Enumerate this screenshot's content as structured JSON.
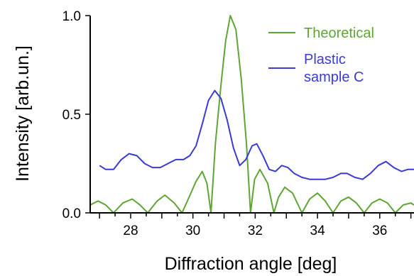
{
  "chart_data": {
    "type": "line",
    "title": "",
    "xlabel": "Diffraction angle [deg]",
    "ylabel": "Intensity  [arb.un.]",
    "xlim": [
      26.7,
      37.1
    ],
    "ylim": [
      0.0,
      1.0
    ],
    "x_ticks": [
      {
        "value": 28,
        "label": "28"
      },
      {
        "value": 30,
        "label": "30"
      },
      {
        "value": 32,
        "label": "32"
      },
      {
        "value": 34,
        "label": "34"
      },
      {
        "value": 36,
        "label": "36"
      }
    ],
    "x_minor_step": 0.5,
    "y_ticks": [
      {
        "value": 0.0,
        "label": "0.0"
      },
      {
        "value": 0.5,
        "label": "0.5"
      },
      {
        "value": 1.0,
        "label": "1.0"
      }
    ],
    "grid": false,
    "legend_position": "top-right",
    "series": [
      {
        "name": "Theoretical",
        "color": "#5ea533",
        "points": [
          [
            26.7,
            0.04
          ],
          [
            26.95,
            0.06
          ],
          [
            27.2,
            0.04
          ],
          [
            27.45,
            0.0
          ],
          [
            27.75,
            0.05
          ],
          [
            28.05,
            0.07
          ],
          [
            28.3,
            0.04
          ],
          [
            28.55,
            0.0
          ],
          [
            28.85,
            0.06
          ],
          [
            29.1,
            0.09
          ],
          [
            29.4,
            0.05
          ],
          [
            29.65,
            0.0
          ],
          [
            29.85,
            0.07
          ],
          [
            30.1,
            0.16
          ],
          [
            30.3,
            0.21
          ],
          [
            30.45,
            0.15
          ],
          [
            30.58,
            0.0
          ],
          [
            30.72,
            0.35
          ],
          [
            30.9,
            0.65
          ],
          [
            31.05,
            0.87
          ],
          [
            31.2,
            1.0
          ],
          [
            31.38,
            0.93
          ],
          [
            31.55,
            0.68
          ],
          [
            31.72,
            0.35
          ],
          [
            31.85,
            0.0
          ],
          [
            31.98,
            0.17
          ],
          [
            32.15,
            0.22
          ],
          [
            32.4,
            0.15
          ],
          [
            32.6,
            0.0
          ],
          [
            32.75,
            0.08
          ],
          [
            32.95,
            0.13
          ],
          [
            33.2,
            0.1
          ],
          [
            33.5,
            0.0
          ],
          [
            33.75,
            0.07
          ],
          [
            34.0,
            0.1
          ],
          [
            34.25,
            0.06
          ],
          [
            34.5,
            0.0
          ],
          [
            34.75,
            0.06
          ],
          [
            35.0,
            0.08
          ],
          [
            35.25,
            0.05
          ],
          [
            35.5,
            0.0
          ],
          [
            35.75,
            0.05
          ],
          [
            36.0,
            0.07
          ],
          [
            36.25,
            0.05
          ],
          [
            36.5,
            0.0
          ],
          [
            36.75,
            0.04
          ],
          [
            37.0,
            0.05
          ],
          [
            37.1,
            0.04
          ]
        ]
      },
      {
        "name": "Plastic\nsample C",
        "color": "#3a3ad4",
        "points": [
          [
            27.0,
            0.24
          ],
          [
            27.2,
            0.22
          ],
          [
            27.45,
            0.22
          ],
          [
            27.7,
            0.27
          ],
          [
            27.95,
            0.3
          ],
          [
            28.2,
            0.29
          ],
          [
            28.45,
            0.25
          ],
          [
            28.7,
            0.23
          ],
          [
            28.95,
            0.23
          ],
          [
            29.2,
            0.25
          ],
          [
            29.45,
            0.27
          ],
          [
            29.7,
            0.27
          ],
          [
            29.9,
            0.29
          ],
          [
            30.1,
            0.34
          ],
          [
            30.3,
            0.45
          ],
          [
            30.5,
            0.57
          ],
          [
            30.7,
            0.62
          ],
          [
            30.9,
            0.58
          ],
          [
            31.1,
            0.47
          ],
          [
            31.3,
            0.33
          ],
          [
            31.5,
            0.24
          ],
          [
            31.7,
            0.27
          ],
          [
            31.9,
            0.34
          ],
          [
            32.05,
            0.35
          ],
          [
            32.25,
            0.29
          ],
          [
            32.45,
            0.22
          ],
          [
            32.65,
            0.21
          ],
          [
            32.85,
            0.24
          ],
          [
            33.05,
            0.23
          ],
          [
            33.25,
            0.2
          ],
          [
            33.5,
            0.18
          ],
          [
            33.75,
            0.17
          ],
          [
            34.0,
            0.17
          ],
          [
            34.25,
            0.17
          ],
          [
            34.5,
            0.18
          ],
          [
            34.75,
            0.2
          ],
          [
            34.95,
            0.2
          ],
          [
            35.2,
            0.18
          ],
          [
            35.45,
            0.17
          ],
          [
            35.7,
            0.2
          ],
          [
            35.95,
            0.24
          ],
          [
            36.2,
            0.26
          ],
          [
            36.45,
            0.23
          ],
          [
            36.7,
            0.21
          ],
          [
            36.9,
            0.22
          ],
          [
            37.1,
            0.22
          ]
        ]
      }
    ]
  }
}
